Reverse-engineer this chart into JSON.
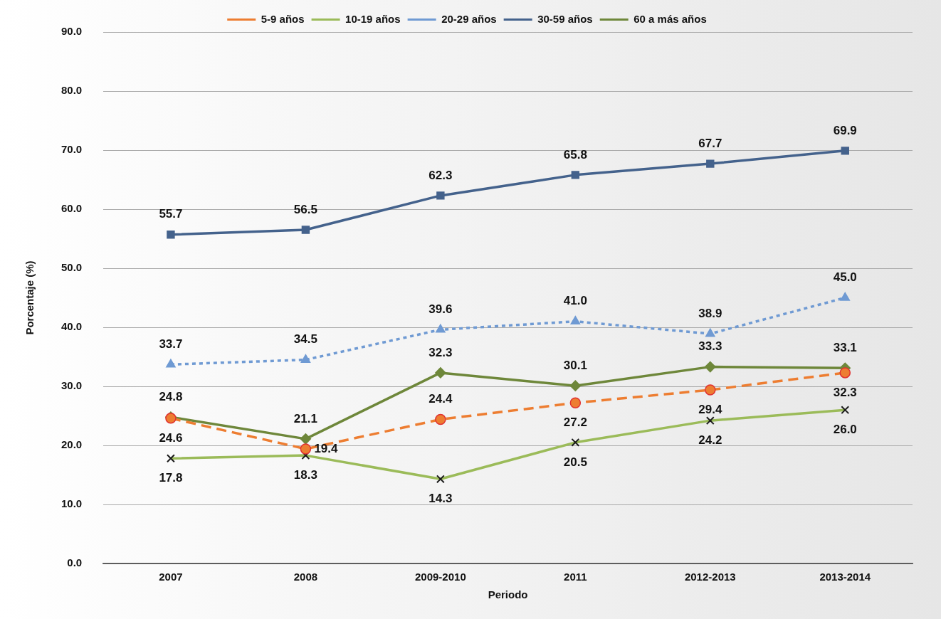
{
  "chart_data": {
    "type": "line",
    "xlabel": "Periodo",
    "ylabel": "Porcentaje (%)",
    "categories": [
      "2007",
      "2008",
      "2009-2010",
      "2011",
      "2012-2013",
      "2013-2014"
    ],
    "ylim": [
      0,
      90
    ],
    "yticks": [
      {
        "value": 0,
        "label": "0.0"
      },
      {
        "value": 10,
        "label": "10.0"
      },
      {
        "value": 20,
        "label": "20.0"
      },
      {
        "value": 30,
        "label": "30.0"
      },
      {
        "value": 40,
        "label": "40.0"
      },
      {
        "value": 50,
        "label": "50.0"
      },
      {
        "value": 60,
        "label": "60.0"
      },
      {
        "value": 70,
        "label": "70.0"
      },
      {
        "value": 80,
        "label": "80.0"
      },
      {
        "value": 90,
        "label": "90.0"
      }
    ],
    "grid": "y",
    "legend": "top",
    "series": [
      {
        "name": "5-9 años",
        "color": "#ed7d31",
        "marker": "circle",
        "line_style": "dashed",
        "values": [
          24.6,
          19.4,
          24.4,
          27.2,
          29.4,
          32.3
        ],
        "value_labels": [
          "24.6",
          "19.4",
          "24.4",
          "27.2",
          "29.4",
          "32.3"
        ]
      },
      {
        "name": "10-19 años",
        "color": "#9bbb59",
        "marker": "cross",
        "line_style": "solid",
        "values": [
          17.8,
          18.3,
          14.3,
          20.5,
          24.2,
          26.0
        ],
        "value_labels": [
          "17.8",
          "18.3",
          "14.3",
          "20.5",
          "24.2",
          "26.0"
        ]
      },
      {
        "name": "20-29 años",
        "color": "#6f9ad3",
        "marker": "triangle",
        "line_style": "dotted",
        "values": [
          33.7,
          34.5,
          39.6,
          41.0,
          38.9,
          45.0
        ],
        "value_labels": [
          "33.7",
          "34.5",
          "39.6",
          "41.0",
          "38.9",
          "45.0"
        ]
      },
      {
        "name": "30-59 años",
        "color": "#44628c",
        "marker": "square",
        "line_style": "solid",
        "values": [
          55.7,
          56.5,
          62.3,
          65.8,
          67.7,
          69.9
        ],
        "value_labels": [
          "55.7",
          "56.5",
          "62.3",
          "65.8",
          "67.7",
          "69.9"
        ]
      },
      {
        "name": "60 a más años",
        "color": "#6e873a",
        "marker": "diamond",
        "line_style": "solid",
        "values": [
          24.8,
          21.1,
          32.3,
          30.1,
          33.3,
          33.1
        ],
        "value_labels": [
          "24.8",
          "21.1",
          "32.3",
          "30.1",
          "33.3",
          "33.1"
        ]
      }
    ]
  }
}
